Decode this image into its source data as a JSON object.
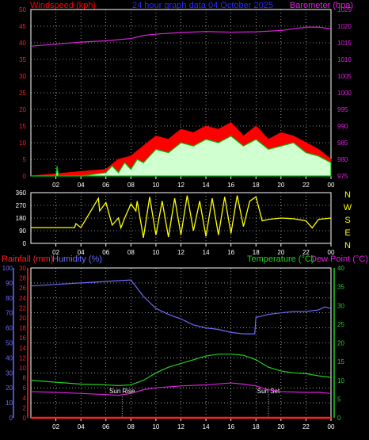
{
  "header": {
    "left_title": "Windspeed (kph)",
    "center_title": "24 hour graph data  04 October 2025",
    "right_title": "Barometer (hpa)"
  },
  "colors": {
    "wind": "#ff0000",
    "gust_band": "#00c000",
    "wind_light": "#d0ffd0",
    "barometer": "#e020e0",
    "direction": "#ffff00",
    "rain": "#ff2020",
    "humidity": "#6a6aff",
    "temperature": "#20d020",
    "dewpoint": "#e020e0",
    "axis_frame": "#ffffff",
    "grid": "#ffffff"
  },
  "chart_data": [
    {
      "type": "line",
      "name": "wind_barometer",
      "xlabel": "",
      "x_ticks": [
        "02",
        "04",
        "06",
        "08",
        "10",
        "12",
        "14",
        "16",
        "18",
        "20",
        "22",
        "00"
      ],
      "left_axis": {
        "label": "Windspeed (kph)",
        "ticks": [
          0,
          5,
          10,
          15,
          20,
          25,
          30,
          35,
          40,
          45,
          50
        ],
        "ylim": [
          0,
          50
        ]
      },
      "right_axis": {
        "label": "Barometer (hpa)",
        "ticks": [
          975,
          980,
          985,
          990,
          995,
          1000,
          1005,
          1010,
          1015,
          1020,
          1025
        ],
        "ylim": [
          975,
          1025
        ]
      },
      "series": [
        {
          "name": "Barometer (hpa)",
          "axis": "right",
          "x": [
            0,
            2,
            4,
            6,
            8,
            9,
            10,
            12,
            14,
            16,
            18,
            20,
            22,
            23,
            24
          ],
          "y": [
            1014,
            1014.6,
            1015.2,
            1015.6,
            1016.3,
            1017.2,
            1017.6,
            1018.1,
            1018.4,
            1018.2,
            1018.3,
            1018.7,
            1019.7,
            1019.7,
            1019.2
          ]
        },
        {
          "name": "Windspeed (kph)",
          "axis": "left",
          "x": [
            0,
            2,
            2.1,
            2.2,
            4,
            6,
            6.5,
            7,
            7.5,
            8,
            8.5,
            9,
            10,
            11,
            12,
            13,
            14,
            15,
            16,
            17,
            18,
            19,
            20,
            21,
            22,
            23,
            24
          ],
          "y": [
            0,
            0,
            3,
            0,
            0,
            1,
            3,
            1,
            4,
            2,
            5,
            4,
            8,
            7,
            10,
            9,
            11,
            10,
            12,
            9,
            11,
            8,
            9,
            10,
            7,
            6,
            4
          ]
        },
        {
          "name": "Gust (kph)",
          "axis": "left",
          "x": [
            0,
            6,
            7,
            8,
            9,
            10,
            11,
            12,
            13,
            14,
            15,
            16,
            17,
            18,
            19,
            20,
            21,
            22,
            23,
            24
          ],
          "y": [
            0,
            2,
            5,
            6,
            9,
            12,
            11,
            14,
            13,
            15,
            14,
            16,
            12,
            15,
            11,
            13,
            12,
            10,
            8,
            5
          ]
        }
      ]
    },
    {
      "type": "line",
      "name": "wind_direction",
      "x_ticks": [
        "02",
        "04",
        "06",
        "08",
        "10",
        "12",
        "14",
        "16",
        "18",
        "20",
        "22",
        "00"
      ],
      "left_axis": {
        "label": "",
        "ticks": [
          0,
          90,
          180,
          270,
          360
        ],
        "ylim": [
          0,
          360
        ]
      },
      "right_labels": [
        "N",
        "W",
        "S",
        "E",
        "N"
      ],
      "series": [
        {
          "name": "Wind Direction",
          "axis": "left",
          "x": [
            0,
            3.5,
            3.6,
            4,
            5.4,
            5.5,
            6,
            6.5,
            7,
            7.2,
            7.5,
            8,
            8.4,
            8.5,
            9,
            9.5,
            10,
            10.5,
            11,
            11.5,
            12,
            12.5,
            13,
            13.5,
            14,
            14.5,
            15,
            15.5,
            16,
            16.5,
            17,
            17.5,
            18,
            18.5,
            19,
            20,
            21,
            22,
            22.5,
            23,
            24
          ],
          "y": [
            112,
            112,
            140,
            112,
            320,
            230,
            290,
            130,
            180,
            110,
            180,
            280,
            230,
            300,
            40,
            330,
            60,
            300,
            45,
            320,
            60,
            340,
            90,
            300,
            50,
            320,
            60,
            330,
            70,
            340,
            120,
            300,
            330,
            160,
            170,
            180,
            175,
            160,
            110,
            170,
            180
          ]
        }
      ]
    },
    {
      "type": "line",
      "name": "rain_humidity_temperature",
      "x_ticks": [
        "02",
        "04",
        "06",
        "08",
        "10",
        "12",
        "14",
        "16",
        "18",
        "20",
        "22",
        "00"
      ],
      "left_axis_humidity": {
        "label": "Humidity (%)",
        "ticks": [
          0,
          10,
          20,
          30,
          40,
          50,
          60,
          70,
          80,
          90,
          100
        ],
        "ylim": [
          0,
          100
        ]
      },
      "left_axis_rain": {
        "label": "Rainfall (mm)",
        "ticks": [
          0,
          2,
          4,
          6,
          8,
          10,
          12,
          14,
          16,
          18,
          20,
          22,
          24,
          26,
          28,
          30
        ],
        "ylim": [
          0,
          30
        ]
      },
      "right_axis": {
        "label": "Temperature (°C)",
        "ticks": [
          0,
          5,
          10,
          15,
          20,
          25,
          30,
          35,
          40
        ],
        "ylim": [
          0,
          40
        ]
      },
      "right_axis_label_2": "Dew Point (°C)",
      "annotations": [
        {
          "text": "Sun Rise",
          "x": 7.3
        },
        {
          "text": "Sun Set",
          "x": 19
        }
      ],
      "series": [
        {
          "name": "Humidity (%)",
          "axis": "humidity",
          "x": [
            0,
            2,
            4,
            6,
            8,
            9,
            10,
            11,
            12,
            13,
            14,
            15,
            16,
            17,
            17.9,
            18,
            19,
            20,
            21,
            22,
            23,
            23.5,
            24
          ],
          "y": [
            88,
            89,
            90,
            91,
            92,
            81,
            73,
            69,
            66,
            62,
            60,
            59,
            57,
            56,
            56,
            67,
            69,
            70,
            71,
            71,
            72,
            74,
            73
          ]
        },
        {
          "name": "Temperature (°C)",
          "axis": "temperature",
          "x": [
            0,
            2,
            4,
            6,
            7,
            8,
            9,
            10,
            11,
            12,
            13,
            14,
            15,
            16,
            17,
            18,
            19,
            20,
            21,
            22,
            23,
            24
          ],
          "y": [
            10,
            9.5,
            9,
            8.8,
            8.6,
            8.8,
            10,
            12,
            13.5,
            14.5,
            15.5,
            16.5,
            17,
            17,
            16.7,
            15.5,
            13.5,
            12.5,
            12,
            11.8,
            11.2,
            10.8
          ]
        },
        {
          "name": "Dew Point (°C)",
          "axis": "temperature",
          "x": [
            0,
            2,
            4,
            6,
            7,
            8,
            9,
            10,
            12,
            14,
            16,
            17,
            18,
            19,
            20,
            22,
            23,
            24
          ],
          "y": [
            7,
            6.8,
            6.5,
            6.2,
            6,
            6.5,
            7.5,
            8,
            8.5,
            8.8,
            9.3,
            9.0,
            8.5,
            7.5,
            7,
            6.8,
            6.8,
            6.5
          ]
        },
        {
          "name": "Rainfall (mm)",
          "axis": "rain",
          "x": [
            0,
            24
          ],
          "y": [
            0,
            0
          ]
        }
      ]
    }
  ],
  "panel3_labels": {
    "rain": "Rainfall (mm)",
    "humidity": "Humidity (%)",
    "temperature": "Temperature (°C)",
    "dewpoint": "Dew Point (°C)",
    "sunrise": "Sun Rise",
    "sunset": "Sun Set"
  }
}
